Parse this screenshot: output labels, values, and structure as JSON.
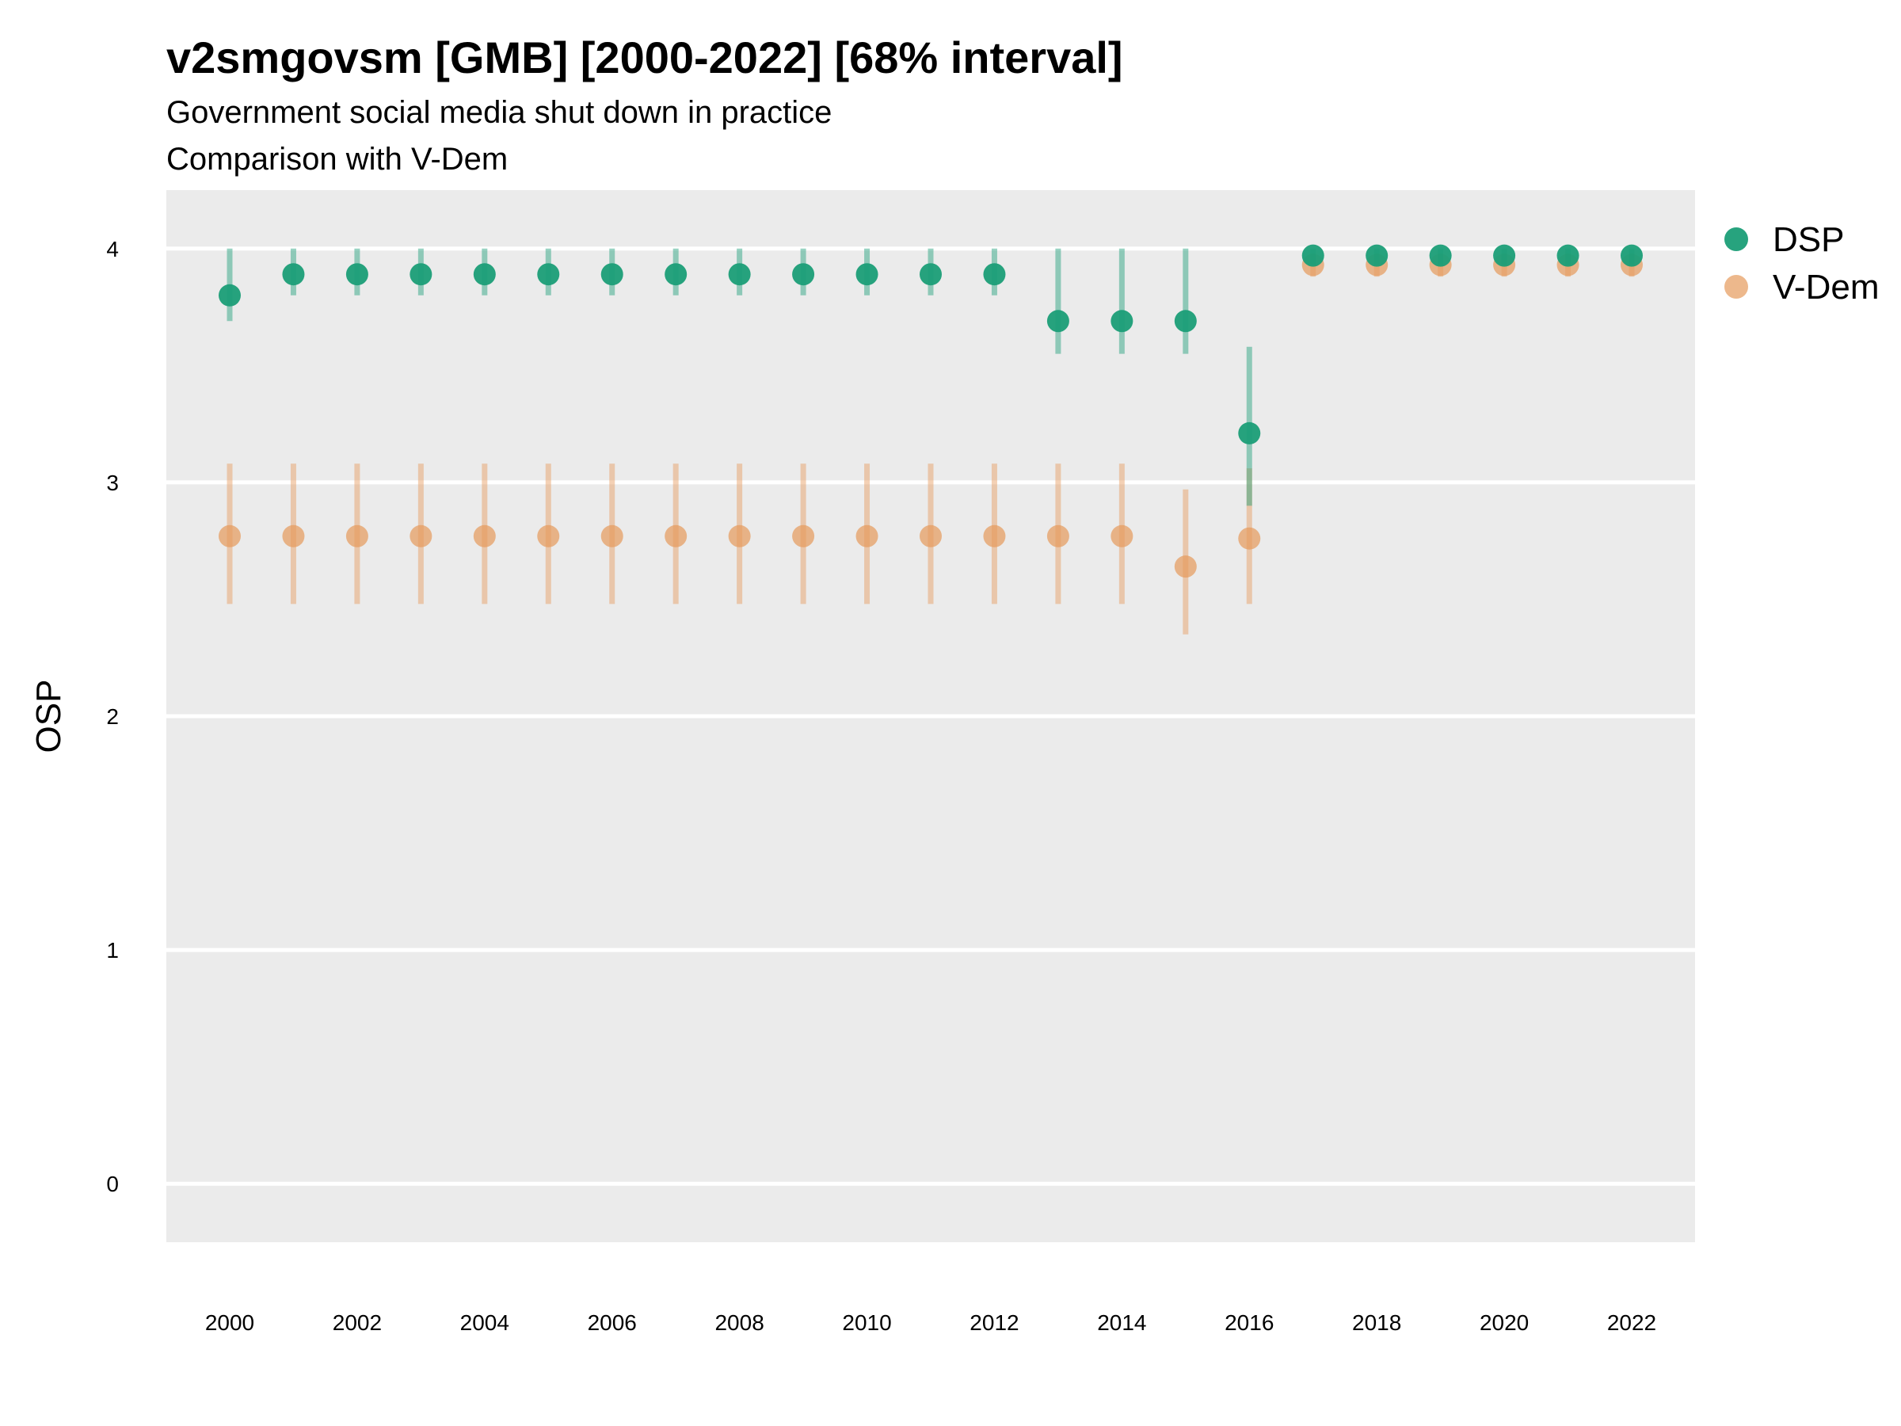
{
  "chart_data": {
    "type": "scatter",
    "title": "v2smgovsm [GMB] [2000-2022] [68% interval]",
    "subtitle_lines": [
      "Government social media shut down in practice",
      "Comparison with V-Dem"
    ],
    "xlabel": "",
    "ylabel": "OSP",
    "x_ticks": [
      2000,
      2002,
      2004,
      2006,
      2008,
      2010,
      2012,
      2014,
      2016,
      2018,
      2020,
      2022
    ],
    "y_ticks": [
      0,
      1,
      2,
      3,
      4
    ],
    "xlim": [
      1999,
      2023
    ],
    "ylim": [
      -0.25,
      4.25
    ],
    "grid": "horizontal",
    "legend_position": "right",
    "colors": {
      "panel_background": "#ebebeb",
      "grid": "#ffffff",
      "DSP": "#1b9e77",
      "V-Dem": "#e69a5b"
    },
    "series": [
      {
        "name": "DSP",
        "x": [
          2000,
          2001,
          2002,
          2003,
          2004,
          2005,
          2006,
          2007,
          2008,
          2009,
          2010,
          2011,
          2012,
          2013,
          2014,
          2015,
          2016,
          2017,
          2018,
          2019,
          2020,
          2021,
          2022
        ],
        "y": [
          3.8,
          3.89,
          3.89,
          3.89,
          3.89,
          3.89,
          3.89,
          3.89,
          3.89,
          3.89,
          3.89,
          3.89,
          3.89,
          3.69,
          3.69,
          3.69,
          3.21,
          3.97,
          3.97,
          3.97,
          3.97,
          3.97,
          3.97
        ],
        "lower": [
          3.69,
          3.8,
          3.8,
          3.8,
          3.8,
          3.8,
          3.8,
          3.8,
          3.8,
          3.8,
          3.8,
          3.8,
          3.8,
          3.55,
          3.55,
          3.55,
          2.9,
          3.93,
          3.93,
          3.93,
          3.93,
          3.93,
          3.93
        ],
        "upper": [
          4.0,
          4.0,
          4.0,
          4.0,
          4.0,
          4.0,
          4.0,
          4.0,
          4.0,
          4.0,
          4.0,
          4.0,
          4.0,
          4.0,
          4.0,
          4.0,
          3.58,
          4.0,
          4.0,
          4.0,
          4.0,
          4.0,
          4.0
        ]
      },
      {
        "name": "V-Dem",
        "x": [
          2000,
          2001,
          2002,
          2003,
          2004,
          2005,
          2006,
          2007,
          2008,
          2009,
          2010,
          2011,
          2012,
          2013,
          2014,
          2015,
          2016,
          2017,
          2018,
          2019,
          2020,
          2021,
          2022
        ],
        "y": [
          2.77,
          2.77,
          2.77,
          2.77,
          2.77,
          2.77,
          2.77,
          2.77,
          2.77,
          2.77,
          2.77,
          2.77,
          2.77,
          2.77,
          2.77,
          2.64,
          2.76,
          3.93,
          3.93,
          3.93,
          3.93,
          3.93,
          3.93
        ],
        "lower": [
          2.48,
          2.48,
          2.48,
          2.48,
          2.48,
          2.48,
          2.48,
          2.48,
          2.48,
          2.48,
          2.48,
          2.48,
          2.48,
          2.48,
          2.48,
          2.35,
          2.48,
          3.88,
          3.88,
          3.88,
          3.88,
          3.88,
          3.88
        ],
        "upper": [
          3.08,
          3.08,
          3.08,
          3.08,
          3.08,
          3.08,
          3.08,
          3.08,
          3.08,
          3.08,
          3.08,
          3.08,
          3.08,
          3.08,
          3.08,
          2.97,
          3.06,
          3.98,
          3.98,
          3.98,
          3.98,
          3.98,
          3.98
        ]
      }
    ]
  }
}
